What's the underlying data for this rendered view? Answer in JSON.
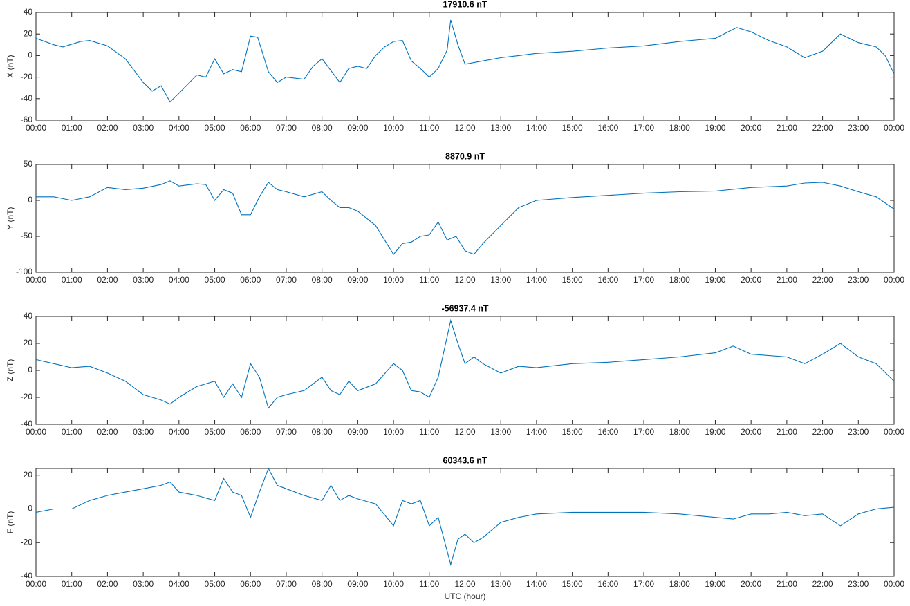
{
  "chart_data": [
    {
      "type": "line",
      "title": "17910.6 nT",
      "ylabel": "X (nT)",
      "xlim": [
        0,
        24
      ],
      "ylim": [
        -60,
        40
      ],
      "yticks": [
        -60,
        -40,
        -20,
        0,
        20,
        40
      ],
      "xticks": [
        {
          "value": 0,
          "label": "00:00"
        },
        {
          "value": 1,
          "label": "01:00"
        },
        {
          "value": 2,
          "label": "02:00"
        },
        {
          "value": 3,
          "label": "03:00"
        },
        {
          "value": 4,
          "label": "04:00"
        },
        {
          "value": 5,
          "label": "05:00"
        },
        {
          "value": 6,
          "label": "06:00"
        },
        {
          "value": 7,
          "label": "07:00"
        },
        {
          "value": 8,
          "label": "08:00"
        },
        {
          "value": 9,
          "label": "09:00"
        },
        {
          "value": 10,
          "label": "10:00"
        },
        {
          "value": 11,
          "label": "11:00"
        },
        {
          "value": 12,
          "label": "12:00"
        },
        {
          "value": 13,
          "label": "13:00"
        },
        {
          "value": 14,
          "label": "14:00"
        },
        {
          "value": 15,
          "label": "15:00"
        },
        {
          "value": 16,
          "label": "16:00"
        },
        {
          "value": 17,
          "label": "17:00"
        },
        {
          "value": 18,
          "label": "18:00"
        },
        {
          "value": 19,
          "label": "19:00"
        },
        {
          "value": 20,
          "label": "20:00"
        },
        {
          "value": 21,
          "label": "21:00"
        },
        {
          "value": 22,
          "label": "22:00"
        },
        {
          "value": 23,
          "label": "23:00"
        },
        {
          "value": 24,
          "label": "00:00"
        }
      ],
      "color": "#0072bd",
      "x": [
        0,
        0.5,
        0.75,
        1.25,
        1.5,
        2,
        2.5,
        3,
        3.25,
        3.5,
        3.75,
        4,
        4.5,
        4.75,
        5,
        5.25,
        5.5,
        5.75,
        6,
        6.2,
        6.5,
        6.75,
        7,
        7.5,
        7.75,
        8,
        8.5,
        8.75,
        9,
        9.25,
        9.5,
        9.75,
        10,
        10.25,
        10.5,
        10.75,
        11,
        11.25,
        11.5,
        11.6,
        11.8,
        12,
        12.5,
        13,
        13.5,
        14,
        14.5,
        15,
        16,
        17,
        18,
        19,
        19.6,
        20,
        20.5,
        21,
        21.5,
        22,
        22.5,
        23,
        23.5,
        23.75,
        24
      ],
      "values": [
        16,
        10,
        8,
        13,
        14,
        9,
        -3,
        -25,
        -33,
        -28,
        -43,
        -35,
        -18,
        -20,
        -3,
        -17,
        -13,
        -15,
        18,
        17,
        -15,
        -25,
        -20,
        -22,
        -10,
        -3,
        -25,
        -12,
        -10,
        -12,
        0,
        8,
        13,
        14,
        -5,
        -12,
        -20,
        -12,
        5,
        33,
        10,
        -8,
        -5,
        -2,
        0,
        2,
        3,
        4,
        7,
        9,
        13,
        16,
        26,
        22,
        14,
        8,
        -2,
        4,
        20,
        12,
        8,
        0,
        -17
      ]
    },
    {
      "type": "line",
      "title": "8870.9 nT",
      "ylabel": "Y (nT)",
      "xlim": [
        0,
        24
      ],
      "ylim": [
        -100,
        50
      ],
      "yticks": [
        -100,
        -50,
        0,
        50
      ],
      "xticks": [
        {
          "value": 0,
          "label": "00:00"
        },
        {
          "value": 1,
          "label": "01:00"
        },
        {
          "value": 2,
          "label": "02:00"
        },
        {
          "value": 3,
          "label": "03:00"
        },
        {
          "value": 4,
          "label": "04:00"
        },
        {
          "value": 5,
          "label": "05:00"
        },
        {
          "value": 6,
          "label": "06:00"
        },
        {
          "value": 7,
          "label": "07:00"
        },
        {
          "value": 8,
          "label": "08:00"
        },
        {
          "value": 9,
          "label": "09:00"
        },
        {
          "value": 10,
          "label": "10:00"
        },
        {
          "value": 11,
          "label": "11:00"
        },
        {
          "value": 12,
          "label": "12:00"
        },
        {
          "value": 13,
          "label": "13:00"
        },
        {
          "value": 14,
          "label": "14:00"
        },
        {
          "value": 15,
          "label": "15:00"
        },
        {
          "value": 16,
          "label": "16:00"
        },
        {
          "value": 17,
          "label": "17:00"
        },
        {
          "value": 18,
          "label": "18:00"
        },
        {
          "value": 19,
          "label": "19:00"
        },
        {
          "value": 20,
          "label": "20:00"
        },
        {
          "value": 21,
          "label": "21:00"
        },
        {
          "value": 22,
          "label": "22:00"
        },
        {
          "value": 23,
          "label": "23:00"
        },
        {
          "value": 24,
          "label": "00:00"
        }
      ],
      "color": "#0072bd",
      "x": [
        0,
        0.5,
        1,
        1.5,
        2,
        2.5,
        3,
        3.5,
        3.75,
        4,
        4.5,
        4.75,
        5,
        5.25,
        5.5,
        5.75,
        6,
        6.25,
        6.5,
        6.75,
        7,
        7.5,
        8,
        8.25,
        8.5,
        8.75,
        9,
        9.5,
        10,
        10.25,
        10.5,
        10.75,
        11,
        11.25,
        11.5,
        11.75,
        12,
        12.25,
        12.5,
        13,
        13.5,
        14,
        15,
        16,
        17,
        18,
        19,
        20,
        21,
        21.5,
        22,
        22.5,
        23,
        23.5,
        24
      ],
      "values": [
        5,
        5,
        0,
        5,
        18,
        15,
        17,
        22,
        27,
        20,
        23,
        22,
        0,
        15,
        10,
        -20,
        -20,
        5,
        25,
        15,
        12,
        5,
        12,
        0,
        -10,
        -10,
        -15,
        -35,
        -75,
        -60,
        -58,
        -50,
        -48,
        -30,
        -55,
        -50,
        -70,
        -75,
        -60,
        -35,
        -10,
        0,
        4,
        7,
        10,
        12,
        13,
        18,
        20,
        24,
        25,
        20,
        12,
        5,
        -12
      ]
    },
    {
      "type": "line",
      "title": "-56937.4 nT",
      "ylabel": "Z (nT)",
      "xlim": [
        0,
        24
      ],
      "ylim": [
        -40,
        40
      ],
      "yticks": [
        -40,
        -20,
        0,
        20,
        40
      ],
      "xticks": [
        {
          "value": 0,
          "label": "00:00"
        },
        {
          "value": 1,
          "label": "01:00"
        },
        {
          "value": 2,
          "label": "02:00"
        },
        {
          "value": 3,
          "label": "03:00"
        },
        {
          "value": 4,
          "label": "04:00"
        },
        {
          "value": 5,
          "label": "05:00"
        },
        {
          "value": 6,
          "label": "06:00"
        },
        {
          "value": 7,
          "label": "07:00"
        },
        {
          "value": 8,
          "label": "08:00"
        },
        {
          "value": 9,
          "label": "09:00"
        },
        {
          "value": 10,
          "label": "10:00"
        },
        {
          "value": 11,
          "label": "11:00"
        },
        {
          "value": 12,
          "label": "12:00"
        },
        {
          "value": 13,
          "label": "13:00"
        },
        {
          "value": 14,
          "label": "14:00"
        },
        {
          "value": 15,
          "label": "15:00"
        },
        {
          "value": 16,
          "label": "16:00"
        },
        {
          "value": 17,
          "label": "17:00"
        },
        {
          "value": 18,
          "label": "18:00"
        },
        {
          "value": 19,
          "label": "19:00"
        },
        {
          "value": 20,
          "label": "20:00"
        },
        {
          "value": 21,
          "label": "21:00"
        },
        {
          "value": 22,
          "label": "22:00"
        },
        {
          "value": 23,
          "label": "23:00"
        },
        {
          "value": 24,
          "label": "00:00"
        }
      ],
      "color": "#0072bd",
      "x": [
        0,
        0.5,
        1,
        1.5,
        2,
        2.5,
        3,
        3.5,
        3.75,
        4,
        4.5,
        5,
        5.25,
        5.5,
        5.75,
        6,
        6.25,
        6.5,
        6.75,
        7,
        7.5,
        8,
        8.25,
        8.5,
        8.75,
        9,
        9.5,
        10,
        10.25,
        10.5,
        10.75,
        11,
        11.25,
        11.5,
        11.6,
        11.8,
        12,
        12.25,
        12.5,
        13,
        13.5,
        14,
        15,
        16,
        17,
        18,
        19,
        19.5,
        20,
        21,
        21.5,
        22,
        22.5,
        23,
        23.5,
        24
      ],
      "values": [
        8,
        5,
        2,
        3,
        -2,
        -8,
        -18,
        -22,
        -25,
        -20,
        -12,
        -8,
        -20,
        -10,
        -20,
        5,
        -5,
        -28,
        -20,
        -18,
        -15,
        -5,
        -15,
        -18,
        -8,
        -15,
        -10,
        5,
        0,
        -15,
        -16,
        -20,
        -5,
        25,
        37,
        20,
        5,
        10,
        5,
        -2,
        3,
        2,
        5,
        6,
        8,
        10,
        13,
        18,
        12,
        10,
        5,
        12,
        20,
        10,
        5,
        -8
      ]
    },
    {
      "type": "line",
      "title": "60343.6 nT",
      "ylabel": "F (nT)",
      "xlabel": "UTC (hour)",
      "xlim": [
        0,
        24
      ],
      "ylim": [
        -40,
        24
      ],
      "yticks": [
        -40,
        -20,
        0,
        20
      ],
      "xticks": [
        {
          "value": 0,
          "label": "00:00"
        },
        {
          "value": 1,
          "label": "01:00"
        },
        {
          "value": 2,
          "label": "02:00"
        },
        {
          "value": 3,
          "label": "03:00"
        },
        {
          "value": 4,
          "label": "04:00"
        },
        {
          "value": 5,
          "label": "05:00"
        },
        {
          "value": 6,
          "label": "06:00"
        },
        {
          "value": 7,
          "label": "07:00"
        },
        {
          "value": 8,
          "label": "08:00"
        },
        {
          "value": 9,
          "label": "09:00"
        },
        {
          "value": 10,
          "label": "10:00"
        },
        {
          "value": 11,
          "label": "11:00"
        },
        {
          "value": 12,
          "label": "12:00"
        },
        {
          "value": 13,
          "label": "13:00"
        },
        {
          "value": 14,
          "label": "14:00"
        },
        {
          "value": 15,
          "label": "15:00"
        },
        {
          "value": 16,
          "label": "16:00"
        },
        {
          "value": 17,
          "label": "17:00"
        },
        {
          "value": 18,
          "label": "18:00"
        },
        {
          "value": 19,
          "label": "19:00"
        },
        {
          "value": 20,
          "label": "20:00"
        },
        {
          "value": 21,
          "label": "21:00"
        },
        {
          "value": 22,
          "label": "22:00"
        },
        {
          "value": 23,
          "label": "23:00"
        },
        {
          "value": 24,
          "label": "00:00"
        }
      ],
      "color": "#0072bd",
      "x": [
        0,
        0.5,
        1,
        1.5,
        2,
        2.5,
        3,
        3.5,
        3.75,
        4,
        4.5,
        5,
        5.25,
        5.5,
        5.75,
        6,
        6.25,
        6.5,
        6.75,
        7,
        7.5,
        8,
        8.25,
        8.5,
        8.75,
        9,
        9.5,
        10,
        10.25,
        10.5,
        10.75,
        11,
        11.25,
        11.5,
        11.6,
        11.8,
        12,
        12.25,
        12.5,
        13,
        13.5,
        14,
        15,
        16,
        17,
        18,
        19,
        19.5,
        20,
        20.5,
        21,
        21.5,
        22,
        22.5,
        23,
        23.5,
        24
      ],
      "values": [
        -2,
        0,
        0,
        5,
        8,
        10,
        12,
        14,
        16,
        10,
        8,
        5,
        18,
        10,
        8,
        -5,
        10,
        24,
        14,
        12,
        8,
        5,
        14,
        5,
        8,
        6,
        3,
        -10,
        5,
        3,
        5,
        -10,
        -5,
        -25,
        -33,
        -18,
        -15,
        -20,
        -17,
        -8,
        -5,
        -3,
        -2,
        -2,
        -2,
        -3,
        -5,
        -6,
        -3,
        -3,
        -2,
        -4,
        -3,
        -10,
        -3,
        0,
        1
      ]
    }
  ]
}
